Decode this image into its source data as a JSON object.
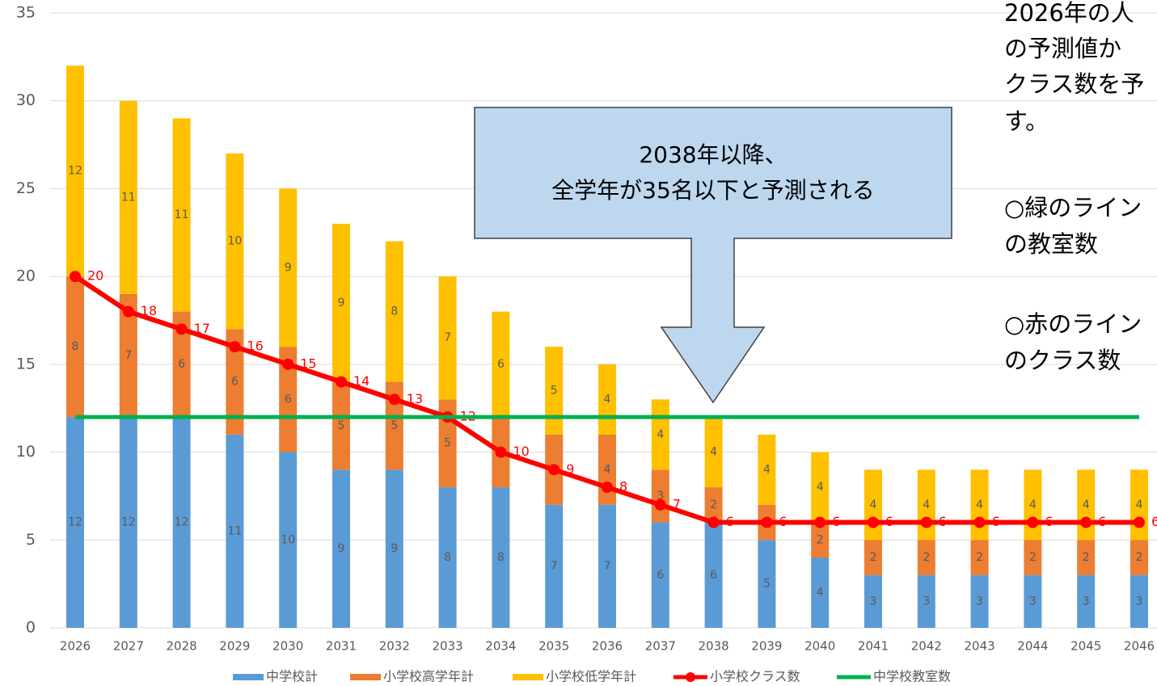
{
  "chart_data": {
    "type": "stacked-bar-line",
    "categories": [
      "2026",
      "2027",
      "2028",
      "2029",
      "2030",
      "2031",
      "2032",
      "2033",
      "2034",
      "2035",
      "2036",
      "2037",
      "2038",
      "2039",
      "2040",
      "2041",
      "2042",
      "2043",
      "2044",
      "2045",
      "2046"
    ],
    "series": [
      {
        "name": "中学校計",
        "kind": "bar",
        "color": "#5b9bd5",
        "values": [
          12,
          12,
          12,
          11,
          10,
          9,
          9,
          8,
          8,
          7,
          7,
          6,
          6,
          5,
          4,
          3,
          3,
          3,
          3,
          3,
          3
        ]
      },
      {
        "name": "小学校高学年計",
        "kind": "bar",
        "color": "#ed7d31",
        "values": [
          8,
          7,
          6,
          6,
          6,
          5,
          5,
          5,
          4,
          4,
          4,
          3,
          2,
          2,
          2,
          2,
          2,
          2,
          2,
          2,
          2
        ]
      },
      {
        "name": "小学校低学年計",
        "kind": "bar",
        "color": "#ffc000",
        "values": [
          12,
          11,
          11,
          10,
          9,
          9,
          8,
          7,
          6,
          5,
          4,
          4,
          4,
          4,
          4,
          4,
          4,
          4,
          4,
          4,
          4
        ]
      },
      {
        "name": "小学校クラス数",
        "kind": "line",
        "marker": true,
        "color": "#ff0000",
        "values": [
          20,
          18,
          17,
          16,
          15,
          14,
          13,
          12,
          10,
          9,
          8,
          7,
          6,
          6,
          6,
          6,
          6,
          6,
          6,
          6,
          6
        ]
      },
      {
        "name": "中学校教室数",
        "kind": "line",
        "marker": false,
        "color": "#00b050",
        "values": [
          12,
          12,
          12,
          12,
          12,
          12,
          12,
          12,
          12,
          12,
          12,
          12,
          12,
          12,
          12,
          12,
          12,
          12,
          12,
          12,
          12
        ]
      }
    ],
    "ylim": [
      0,
      35
    ],
    "yticks": [
      0,
      5,
      10,
      15,
      20,
      25,
      30,
      35
    ],
    "grid": true,
    "legend": "bottom",
    "annotations": [
      "2038年以降、",
      "全学年が35名以下と予測される"
    ],
    "side_notes": [
      "2026年の人",
      "の予測値か",
      "クラス数を予",
      "す。",
      "○緑のライン",
      "の教室数",
      "○赤のライン",
      "のクラス数"
    ]
  }
}
